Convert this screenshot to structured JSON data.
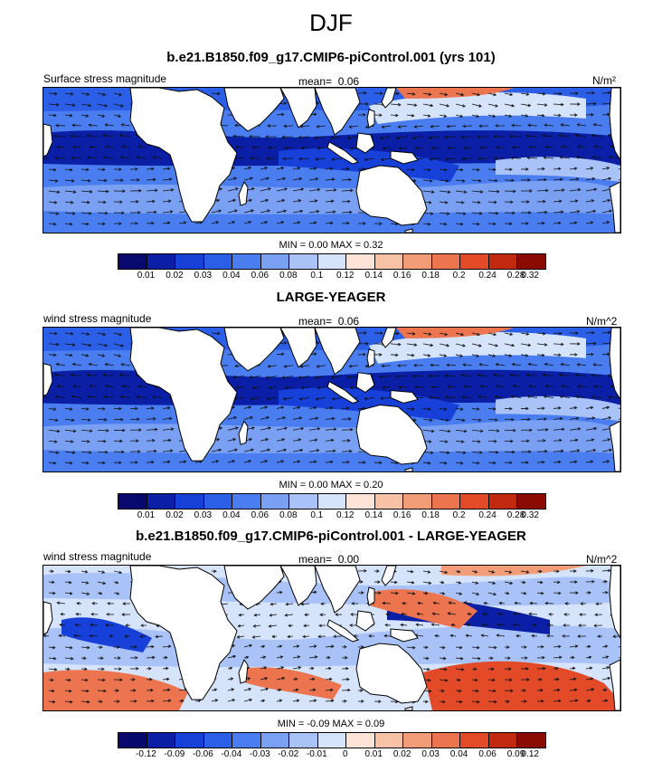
{
  "title": "DJF",
  "panels": [
    {
      "title": "b.e21.B1850.f09_g17.CMIP6-piControl.001 (yrs 101)",
      "left_label": "Surface stress magnitude",
      "mean_label": "mean=",
      "mean_value": "0.06",
      "units": "N/m²",
      "stats": "MIN =  0.00 MAX =  0.32",
      "levels": [
        "0.01",
        "0.02",
        "0.03",
        "0.04",
        "0.06",
        "0.08",
        "0.1",
        "0.12",
        "0.14",
        "0.16",
        "0.18",
        "0.2",
        "0.24",
        "0.28",
        "0.32"
      ],
      "diff": false
    },
    {
      "title": "LARGE-YEAGER",
      "left_label": "wind stress magnitude",
      "mean_label": "mean=",
      "mean_value": "0.06",
      "units": "N/m^2",
      "stats": "MIN =  0.00 MAX =  0.20",
      "levels": [
        "0.01",
        "0.02",
        "0.03",
        "0.04",
        "0.06",
        "0.08",
        "0.1",
        "0.12",
        "0.14",
        "0.16",
        "0.18",
        "0.2",
        "0.24",
        "0.28",
        "0.32"
      ],
      "diff": false
    },
    {
      "title": "b.e21.B1850.f09_g17.CMIP6-piControl.001 - LARGE-YEAGER",
      "left_label": "wind stress magnitude",
      "mean_label": "mean=",
      "mean_value": "0.00",
      "units": "N/m^2",
      "stats": "MIN = -0.09 MAX =  0.09",
      "levels": [
        "-0.12",
        "-0.09",
        "-0.06",
        "-0.04",
        "-0.03",
        "-0.02",
        "-0.01",
        "0",
        "0.01",
        "0.02",
        "0.03",
        "0.04",
        "0.06",
        "0.09",
        "0.12"
      ],
      "diff": true
    }
  ],
  "colors": {
    "colorbar": [
      "#08086e",
      "#0a1fa6",
      "#1740d8",
      "#2c5fe8",
      "#4a7ef0",
      "#7aa0f4",
      "#a9c3f8",
      "#d5e3fb",
      "#fde4d6",
      "#f8c2a6",
      "#f39c78",
      "#ec7550",
      "#e24a28",
      "#c22a10",
      "#8b0a02"
    ],
    "land": "#ffffff",
    "coast": "#000000",
    "arrow": "#111111"
  }
}
